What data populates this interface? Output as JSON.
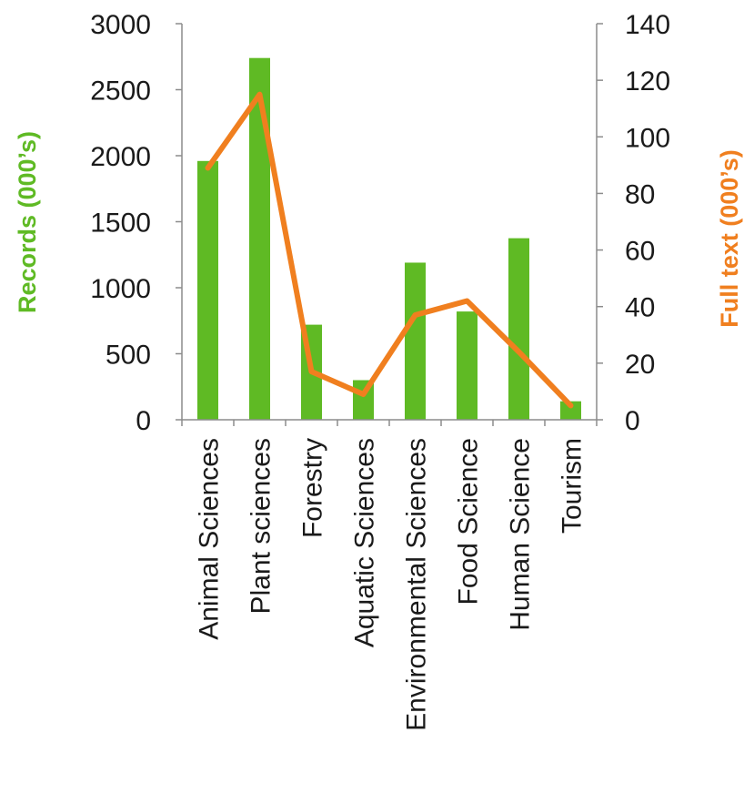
{
  "chart_data": {
    "type": "bar",
    "title": "",
    "xlabel": "",
    "categories": [
      "Animal Sciences",
      "Plant sciences",
      "Forestry",
      "Aquatic Sciences",
      "Environmental Sciences",
      "Food Science",
      "Human Science",
      "Tourism"
    ],
    "series": [
      {
        "name": "Records (000's)",
        "type": "bar",
        "axis": "left",
        "color": "#5fba24",
        "values": [
          1960,
          2740,
          720,
          300,
          1190,
          820,
          1375,
          140
        ]
      },
      {
        "name": "Full text (000's)",
        "type": "line",
        "axis": "right",
        "color": "#f07f1f",
        "values": [
          89,
          115,
          17,
          9,
          37,
          42,
          24,
          5
        ]
      }
    ],
    "y_left": {
      "label": "Records (000’s)",
      "color": "#5fba24",
      "range": [
        0,
        3000
      ],
      "ticks": [
        "0",
        "500",
        "1000",
        "1500",
        "2000",
        "2500",
        "3000"
      ]
    },
    "y_right": {
      "label": "Full text (000’s)",
      "color": "#f07f1f",
      "range": [
        0,
        140
      ],
      "ticks": [
        "0",
        "20",
        "40",
        "60",
        "80",
        "100",
        "120",
        "140"
      ]
    },
    "grid": false,
    "legend": "none"
  }
}
